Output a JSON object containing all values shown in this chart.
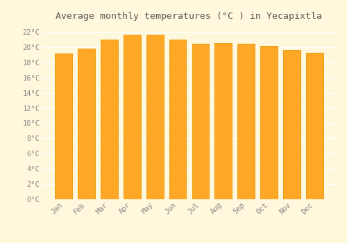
{
  "title": "Average monthly temperatures (°C ) in Yecapixtla",
  "months": [
    "Jan",
    "Feb",
    "Mar",
    "Apr",
    "May",
    "Jun",
    "Jul",
    "Aug",
    "Sep",
    "Oct",
    "Nov",
    "Dec"
  ],
  "values": [
    19.2,
    19.8,
    21.0,
    21.6,
    21.6,
    21.0,
    20.4,
    20.5,
    20.4,
    20.2,
    19.6,
    19.3
  ],
  "bar_color": "#FFA726",
  "bar_edge_color": "#E69500",
  "background_color": "#FFF8DC",
  "plot_bg_color": "#FFF8DC",
  "grid_color": "#FFFFFF",
  "text_color": "#888888",
  "title_color": "#555555",
  "ylim": [
    0,
    23
  ],
  "ytick_step": 2,
  "title_fontsize": 9.5,
  "tick_fontsize": 7.5,
  "tick_fontfamily": "monospace",
  "title_fontfamily": "monospace"
}
